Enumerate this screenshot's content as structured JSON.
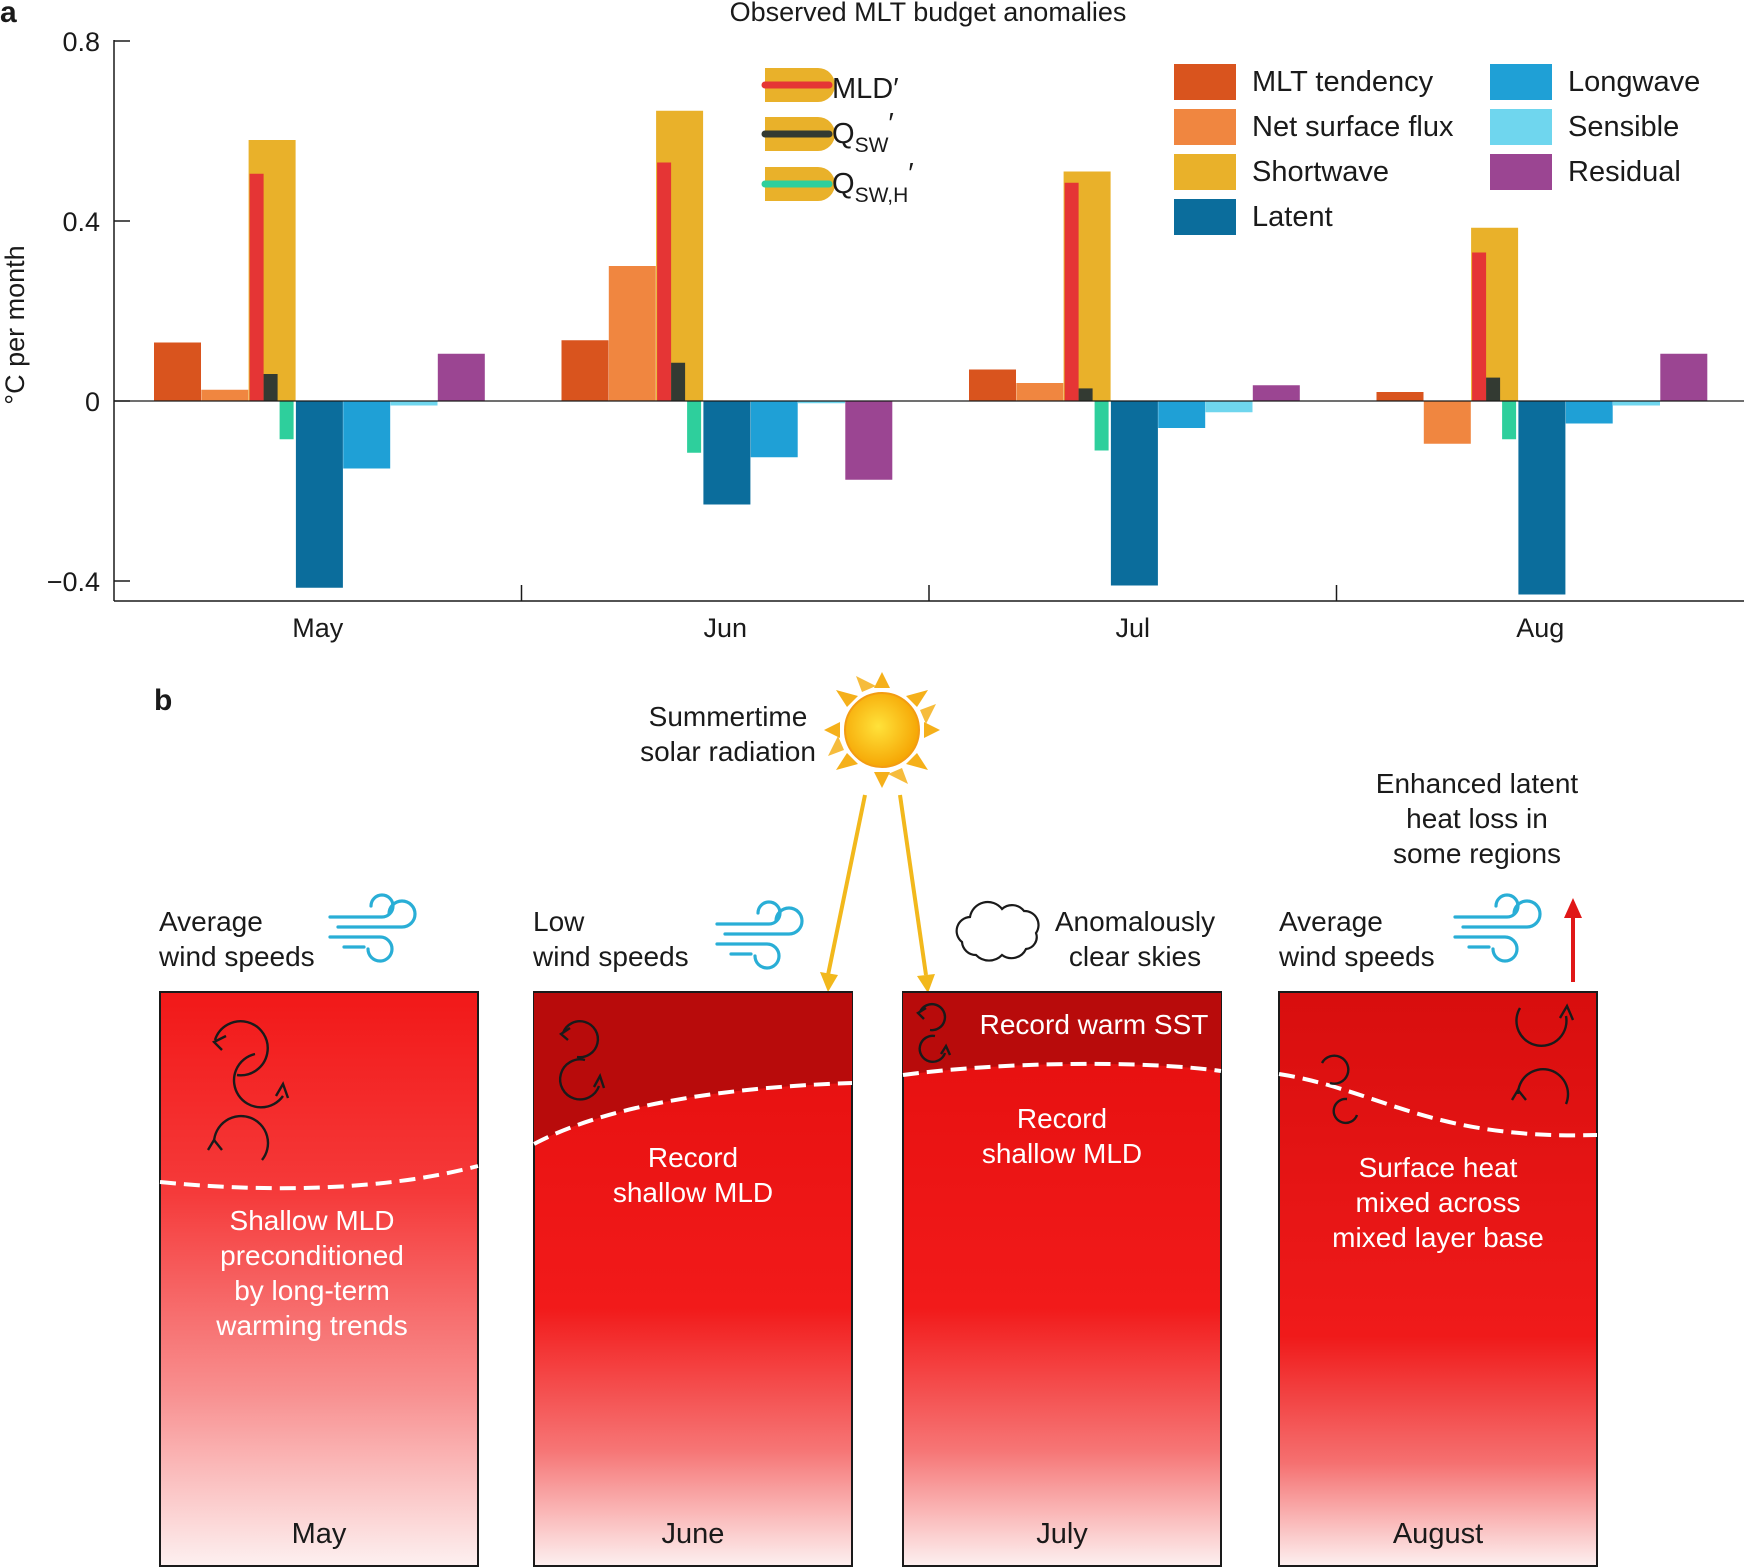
{
  "panel_a": {
    "letter": "a"
  },
  "panel_b": {
    "letter": "b"
  },
  "chart_data": {
    "type": "bar",
    "title": "Observed MLT budget anomalies",
    "xlabel": "",
    "ylabel": "°C per month",
    "ylim": [
      -0.45,
      0.8
    ],
    "yticks": [
      0.8,
      0.4,
      0,
      -0.4
    ],
    "ytick_labels": [
      "0.8",
      "0.4",
      "0",
      "−0.4"
    ],
    "categories": [
      "May",
      "Jun",
      "Jul",
      "Aug"
    ],
    "series": [
      {
        "name": "MLT tendency",
        "color": "#d9541e",
        "values": [
          0.13,
          0.135,
          0.07,
          0.02
        ]
      },
      {
        "name": "Net surface flux",
        "color": "#f08640",
        "values": [
          0.025,
          0.3,
          0.04,
          -0.095
        ]
      },
      {
        "name": "Shortwave",
        "color": "#e9b12a",
        "values": [
          0.58,
          0.645,
          0.51,
          0.385
        ]
      },
      {
        "name": "Latent",
        "color": "#0b6d9c",
        "values": [
          -0.415,
          -0.23,
          -0.41,
          -0.43
        ]
      },
      {
        "name": "Longwave",
        "color": "#1fa0d6",
        "values": [
          -0.15,
          -0.125,
          -0.06,
          -0.05
        ]
      },
      {
        "name": "Sensible",
        "color": "#6fd6ee",
        "values": [
          -0.01,
          -0.005,
          -0.025,
          -0.01
        ]
      },
      {
        "name": "Residual",
        "color": "#9b4592",
        "values": [
          0.105,
          -0.175,
          0.035,
          0.105
        ]
      }
    ],
    "shortwave_decomposition": [
      {
        "name": "MLD′",
        "label_main": "MLD′",
        "label_sub": "",
        "color": "#e53535",
        "values": [
          0.505,
          0.53,
          0.485,
          0.33
        ]
      },
      {
        "name": "QSW′",
        "label_main": "Q",
        "label_sub": "SW",
        "label_suffix": "′",
        "color": "#333a32",
        "values": [
          0.06,
          0.085,
          0.028,
          0.052
        ]
      },
      {
        "name": "QSW,H′",
        "label_main": "Q",
        "label_sub": "SW,H",
        "label_suffix": "′",
        "color": "#2ecf9c",
        "values": [
          -0.085,
          -0.115,
          -0.11,
          -0.085
        ]
      }
    ],
    "legend_position": "top-right"
  },
  "schematic": {
    "sun_label_line1": "Summertime",
    "sun_label_line2": "solar radiation",
    "latent_label": [
      "Enhanced latent",
      "heat loss in",
      "some regions"
    ],
    "panels": [
      {
        "month": "May",
        "wind_line1": "Average",
        "wind_line2": "wind speeds",
        "body": [
          "Shallow MLD",
          "preconditioned",
          "by long-term",
          "warming trends"
        ]
      },
      {
        "month": "June",
        "wind_line1": "Low",
        "wind_line2": "wind speeds",
        "body": [
          "Record",
          "shallow MLD"
        ]
      },
      {
        "month": "July",
        "sky_line1": "Anomalously",
        "sky_line2": "clear skies",
        "top_text": "Record warm SST",
        "body": [
          "Record",
          "shallow MLD"
        ]
      },
      {
        "month": "August",
        "wind_line1": "Average",
        "wind_line2": "wind speeds",
        "body": [
          "Surface heat",
          "mixed across",
          "mixed layer base"
        ]
      }
    ]
  },
  "colors": {
    "wind": "#29aed6",
    "sun_arrow": "#f2b81c",
    "latent_arrow": "#e01717",
    "box_top": "#f01414",
    "dark_top": "#b80b0b"
  }
}
